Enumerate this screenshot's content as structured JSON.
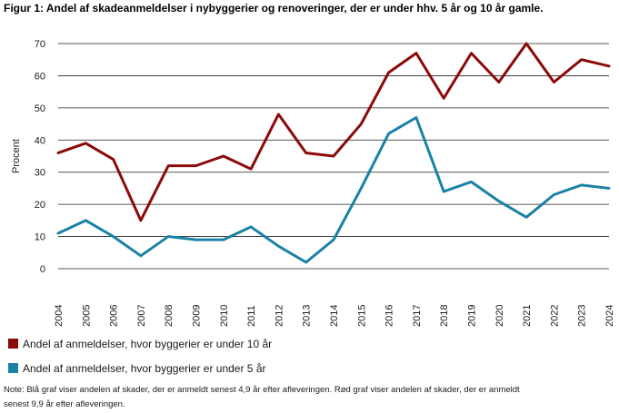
{
  "chart_data": {
    "type": "line",
    "title": "Figur 1: Andel af skadeanmeldelser i nybyggerier og renoveringer, der er under hhv. 5 år og 10 år gamle.",
    "ylabel": "Procent",
    "xlabel": "",
    "ylim": [
      0,
      70
    ],
    "yticks": [
      0,
      10,
      20,
      30,
      40,
      50,
      60,
      70
    ],
    "grid": true,
    "legend_position": "bottom",
    "categories": [
      "2004",
      "2005",
      "2006",
      "2007",
      "2008",
      "2009",
      "2010",
      "2011",
      "2012",
      "2013",
      "2014",
      "2015",
      "2016",
      "2017",
      "2018",
      "2019",
      "2020",
      "2021",
      "2022",
      "2023",
      "2024"
    ],
    "series": [
      {
        "name": "Andel af anmeldelser, hvor byggerier er under 10 år",
        "color": "#8b0a0a",
        "values": [
          36,
          39,
          34,
          15,
          32,
          32,
          35,
          31,
          48,
          36,
          35,
          45,
          61,
          67,
          53,
          67,
          58,
          70,
          58,
          65,
          63
        ]
      },
      {
        "name": "Andel af anmeldelser, hvor byggerier er under 5 år",
        "color": "#1a82a6",
        "values": [
          11,
          15,
          10,
          4,
          10,
          9,
          9,
          13,
          7,
          2,
          9,
          25,
          42,
          47,
          24,
          27,
          21,
          16,
          23,
          26,
          25
        ]
      }
    ]
  },
  "note": {
    "line1": "Note: Blå graf viser andelen af skader, der er anmeldt senest 4,9 år efter afleveringen. Rød graf viser andelen af skader, der er anmeldt",
    "line2": "senest 9,9 år efter afleveringen."
  }
}
